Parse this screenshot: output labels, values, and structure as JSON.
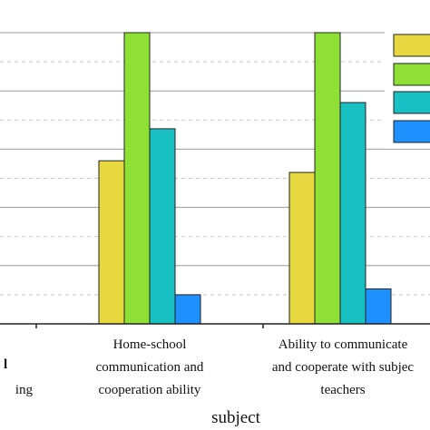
{
  "chart_data": {
    "type": "bar",
    "xlabel": "subject",
    "ylabel": "",
    "ylim": [
      0,
      10
    ],
    "grid": "horizontal, dashed minor",
    "legend_placement": "top-right",
    "categories": [
      [
        "l",
        "ing"
      ],
      [
        "Home-school",
        "communication and",
        "cooperation ability"
      ],
      [
        "Ability to communicate",
        "and cooperate with subjec",
        "teachers"
      ]
    ],
    "colors": [
      "#e8d840",
      "#8ee034",
      "#18c0c4",
      "#1e90ff"
    ],
    "series": [
      {
        "values": [
          null,
          5.6,
          5.2
        ]
      },
      {
        "values": [
          null,
          10.0,
          10.0
        ]
      },
      {
        "values": [
          null,
          6.7,
          7.6
        ]
      },
      {
        "values": [
          null,
          1.0,
          1.2
        ]
      }
    ]
  }
}
